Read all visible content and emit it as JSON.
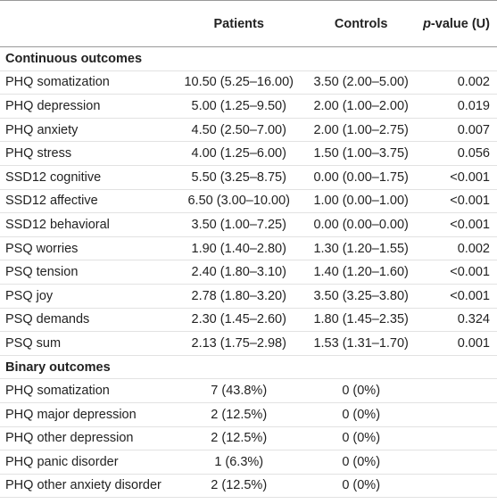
{
  "header": {
    "label": "",
    "patients": "Patients",
    "controls": "Controls",
    "p_value": {
      "italic": "p",
      "rest": "-value (U)"
    }
  },
  "sections": [
    {
      "title": "Continuous outcomes",
      "rows": [
        [
          "PHQ somatization",
          "10.50 (5.25–16.00)",
          "3.50 (2.00–5.00)",
          "0.002"
        ],
        [
          "PHQ depression",
          "5.00 (1.25–9.50)",
          "2.00 (1.00–2.00)",
          "0.019"
        ],
        [
          "PHQ anxiety",
          "4.50 (2.50–7.00)",
          "2.00 (1.00–2.75)",
          "0.007"
        ],
        [
          "PHQ stress",
          "4.00 (1.25–6.00)",
          "1.50 (1.00–3.75)",
          "0.056"
        ],
        [
          "SSD12 cognitive",
          "5.50 (3.25–8.75)",
          "0.00 (0.00–1.75)",
          "<0.001"
        ],
        [
          "SSD12 affective",
          "6.50 (3.00–10.00)",
          "1.00 (0.00–1.00)",
          "<0.001"
        ],
        [
          "SSD12 behavioral",
          "3.50 (1.00–7.25)",
          "0.00 (0.00–0.00)",
          "<0.001"
        ],
        [
          "PSQ worries",
          "1.90 (1.40–2.80)",
          "1.30 (1.20–1.55)",
          "0.002"
        ],
        [
          "PSQ tension",
          "2.40 (1.80–3.10)",
          "1.40 (1.20–1.60)",
          "<0.001"
        ],
        [
          "PSQ joy",
          "2.78 (1.80–3.20)",
          "3.50 (3.25–3.80)",
          "<0.001"
        ],
        [
          "PSQ demands",
          "2.30 (1.45–2.60)",
          "1.80 (1.45–2.35)",
          "0.324"
        ],
        [
          "PSQ sum",
          "2.13 (1.75–2.98)",
          "1.53 (1.31–1.70)",
          "0.001"
        ]
      ]
    },
    {
      "title": "Binary outcomes",
      "rows": [
        [
          "PHQ somatization",
          "7 (43.8%)",
          "0 (0%)"
        ],
        [
          "PHQ major depression",
          "2 (12.5%)",
          "0 (0%)"
        ],
        [
          "PHQ other depression",
          "2 (12.5%)",
          "0 (0%)"
        ],
        [
          "PHQ panic disorder",
          "1 (6.3%)",
          "0 (0%)"
        ],
        [
          "PHQ other anxiety disorder",
          "2 (12.5%)",
          "0 (0%)"
        ]
      ]
    }
  ]
}
